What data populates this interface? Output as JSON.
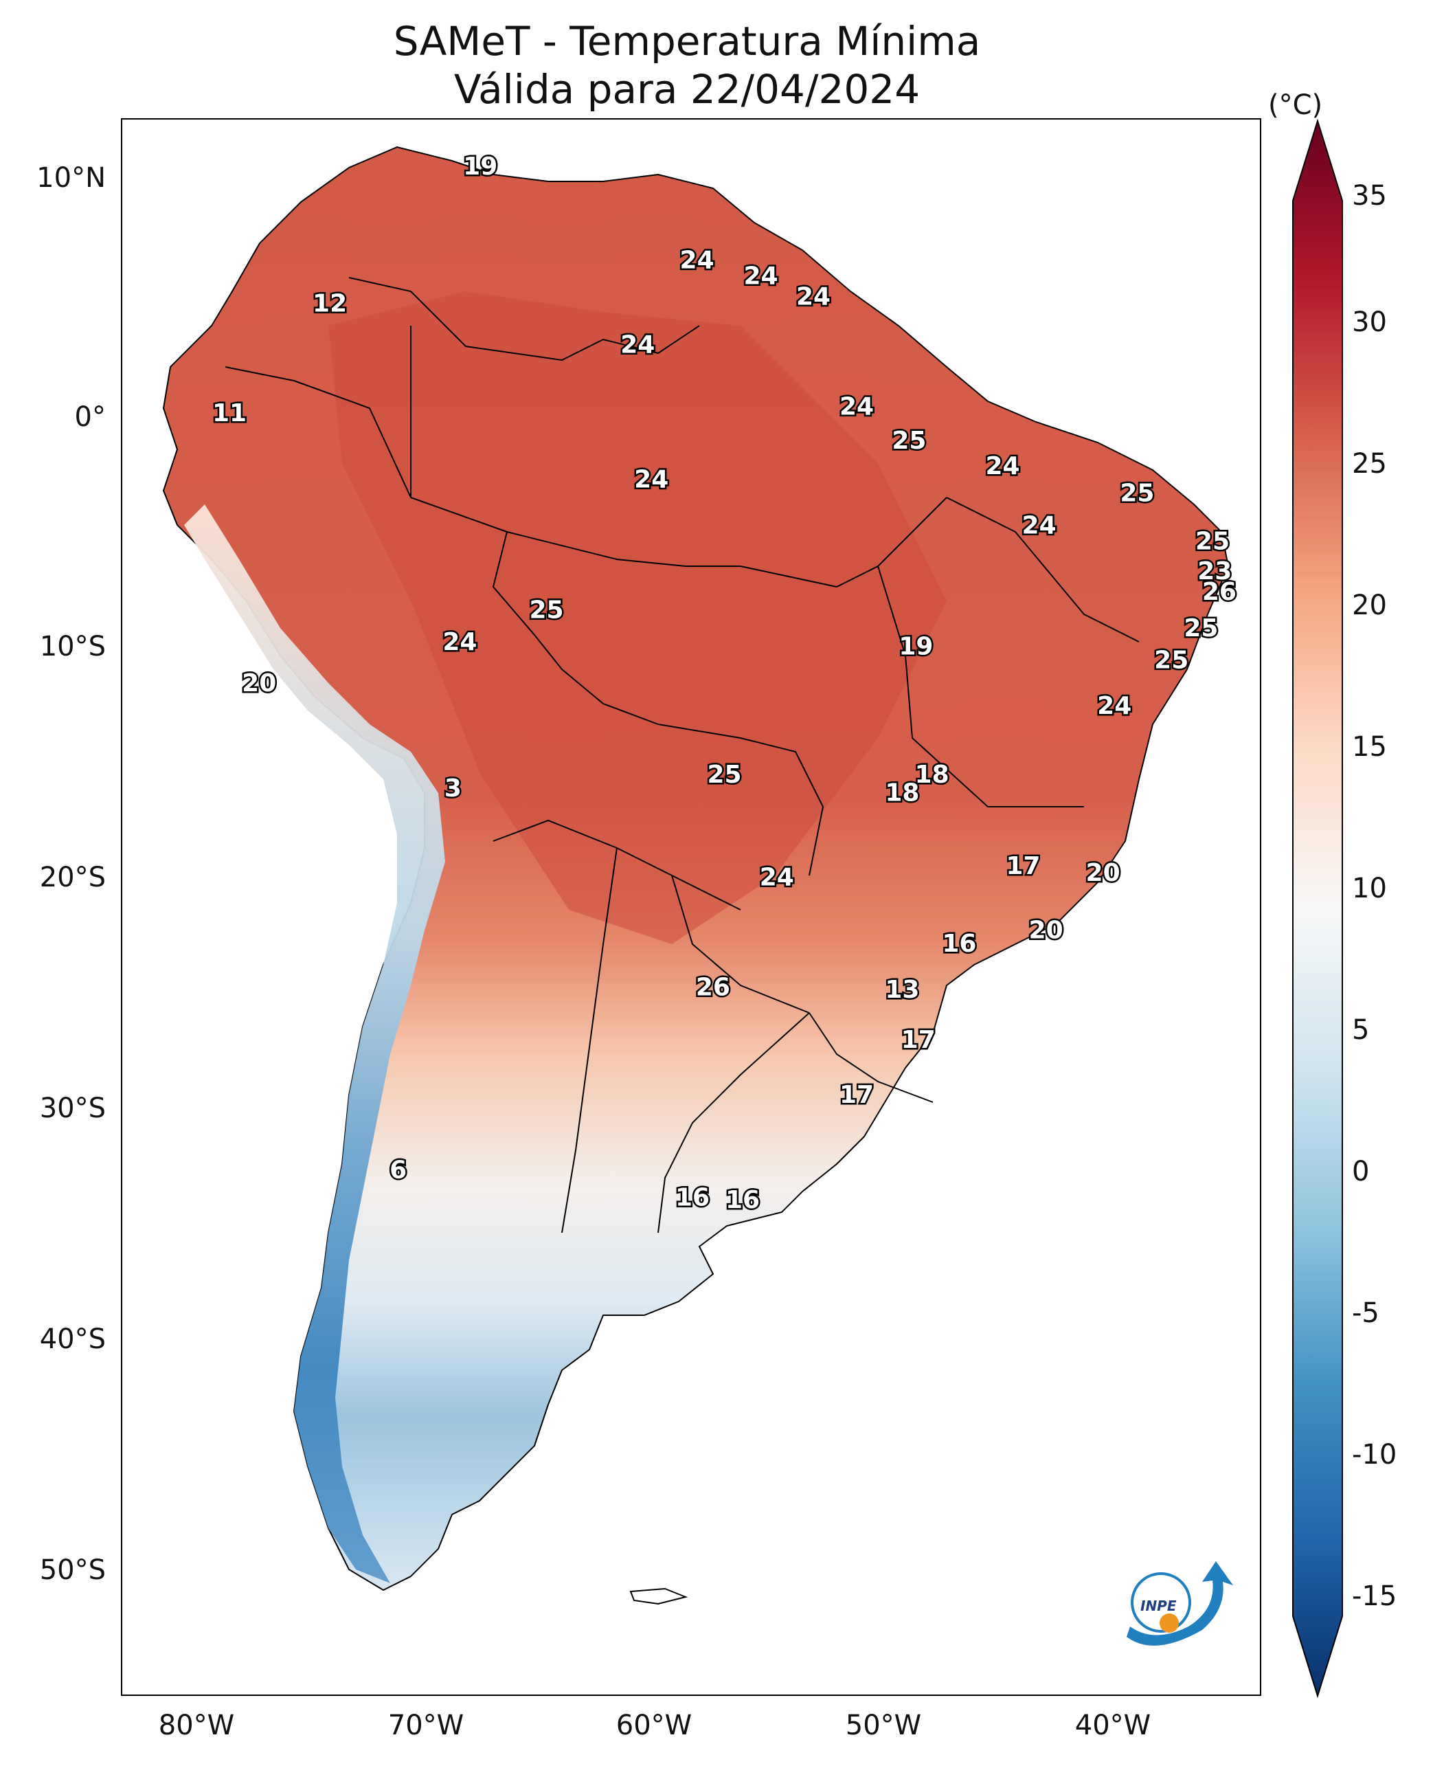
{
  "title": "SAMeT - Temperatura Mínima",
  "subtitle": "Válida para 22/04/2024",
  "colorbar": {
    "unit": "(°C)",
    "min": -15,
    "max": 35,
    "ticks": [
      "35",
      "30",
      "25",
      "20",
      "15",
      "10",
      "5",
      "0",
      "-5",
      "-10",
      "-15"
    ],
    "colors": [
      "#08306b",
      "#2166ac",
      "#4393c3",
      "#92c5de",
      "#d1e5f0",
      "#f7f7f7",
      "#fddbc7",
      "#f4a582",
      "#d6604d",
      "#b2182b",
      "#67001f"
    ]
  },
  "axes": {
    "lat_labels": [
      "10°N",
      "0°",
      "10°S",
      "20°S",
      "30°S",
      "40°S",
      "50°S"
    ],
    "lon_labels": [
      "80°W",
      "70°W",
      "60°W",
      "50°W",
      "40°W"
    ],
    "lon_range": [
      -83,
      -33
    ],
    "lat_range": [
      -56,
      13
    ]
  },
  "map_labels": [
    {
      "text": "19",
      "lon": -67.3,
      "lat": 10.6
    },
    {
      "text": "24",
      "lon": -57.8,
      "lat": 6.5
    },
    {
      "text": "24",
      "lon": -55.0,
      "lat": 5.8
    },
    {
      "text": "24",
      "lon": -52.7,
      "lat": 4.9
    },
    {
      "text": "12",
      "lon": -73.9,
      "lat": 4.6
    },
    {
      "text": "24",
      "lon": -60.4,
      "lat": 2.8
    },
    {
      "text": "11",
      "lon": -78.3,
      "lat": -0.2
    },
    {
      "text": "24",
      "lon": -50.8,
      "lat": 0.1
    },
    {
      "text": "25",
      "lon": -48.5,
      "lat": -1.4
    },
    {
      "text": "24",
      "lon": -44.4,
      "lat": -2.5
    },
    {
      "text": "24",
      "lon": -59.8,
      "lat": -3.1
    },
    {
      "text": "25",
      "lon": -38.5,
      "lat": -3.7
    },
    {
      "text": "24",
      "lon": -42.8,
      "lat": -5.1
    },
    {
      "text": "25",
      "lon": -35.2,
      "lat": -5.8
    },
    {
      "text": "23",
      "lon": -35.1,
      "lat": -7.1
    },
    {
      "text": "26",
      "lon": -34.9,
      "lat": -8.0
    },
    {
      "text": "25",
      "lon": -64.4,
      "lat": -8.8
    },
    {
      "text": "25",
      "lon": -35.7,
      "lat": -9.6
    },
    {
      "text": "24",
      "lon": -68.2,
      "lat": -10.2
    },
    {
      "text": "19",
      "lon": -48.2,
      "lat": -10.4
    },
    {
      "text": "25",
      "lon": -37.0,
      "lat": -11.0
    },
    {
      "text": "20",
      "lon": -77.0,
      "lat": -12.0
    },
    {
      "text": "24",
      "lon": -39.5,
      "lat": -13.0
    },
    {
      "text": "18",
      "lon": -47.5,
      "lat": -16.0
    },
    {
      "text": "25",
      "lon": -56.6,
      "lat": -16.0
    },
    {
      "text": "18",
      "lon": -48.8,
      "lat": -16.8
    },
    {
      "text": "3",
      "lon": -68.5,
      "lat": -16.6
    },
    {
      "text": "17",
      "lon": -43.5,
      "lat": -20.0
    },
    {
      "text": "24",
      "lon": -54.3,
      "lat": -20.5
    },
    {
      "text": "20",
      "lon": -40.0,
      "lat": -20.3
    },
    {
      "text": "20",
      "lon": -42.5,
      "lat": -22.8
    },
    {
      "text": "16",
      "lon": -46.3,
      "lat": -23.4
    },
    {
      "text": "26",
      "lon": -57.1,
      "lat": -25.3
    },
    {
      "text": "13",
      "lon": -48.8,
      "lat": -25.4
    },
    {
      "text": "17",
      "lon": -48.1,
      "lat": -27.6
    },
    {
      "text": "17",
      "lon": -50.8,
      "lat": -30.0
    },
    {
      "text": "6",
      "lon": -70.9,
      "lat": -33.3
    },
    {
      "text": "16",
      "lon": -58.0,
      "lat": -34.5
    },
    {
      "text": "16",
      "lon": -55.8,
      "lat": -34.6
    }
  ]
}
